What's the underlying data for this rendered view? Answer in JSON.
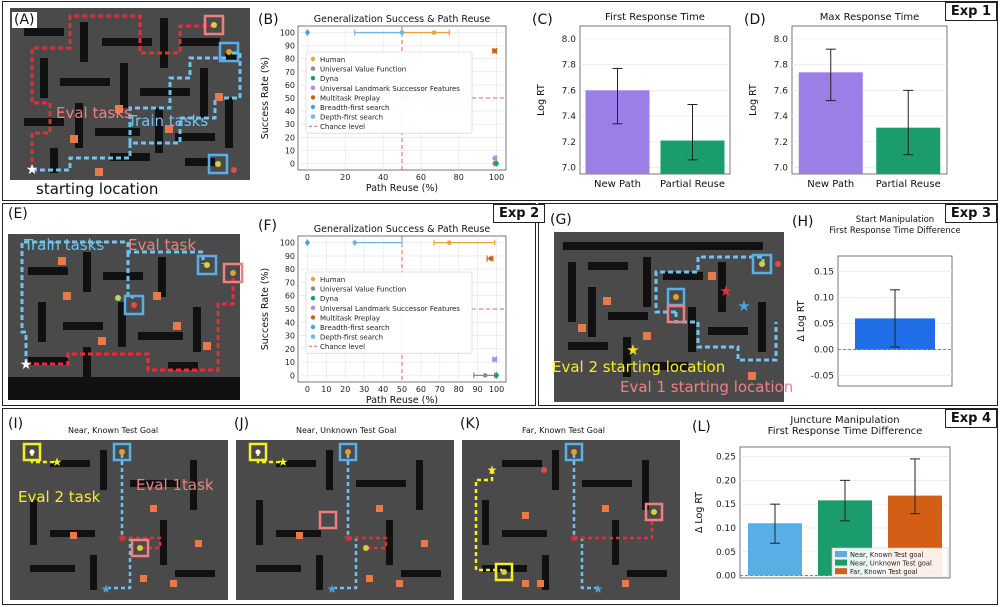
{
  "rows": {
    "exp1": "Exp 1",
    "exp2": "Exp 2",
    "exp3": "Exp 3",
    "exp4": "Exp 4"
  },
  "colors": {
    "bar_purple": "#9c7fe6",
    "bar_green": "#1a9c6c",
    "bar_blue": "#1f6ee8",
    "bar_orange": "#d35f16",
    "bar_lightblue": "#5aaee6",
    "maze_bg": "#4a4a4a",
    "wall": "#111111",
    "path_red": "#e0303c",
    "path_blue": "#6fc4ef"
  },
  "panels": {
    "A": {
      "label": "(A)",
      "eval_text": "Eval tasks",
      "train_text": "Train tasks",
      "start_text": "starting location"
    },
    "E": {
      "label": "(E)",
      "train_text": "Train tasks",
      "eval_text": "Eval task"
    },
    "G": {
      "label": "(G)",
      "eval2_text": "Eval 2 starting location",
      "eval1_text": "Eval 1 starting location"
    },
    "I": {
      "label": "(I)",
      "title": "Near, Known Test Goal",
      "eval2_text": "Eval 2 task",
      "eval1_text": "Eval 1task"
    },
    "J": {
      "label": "(J)",
      "title": "Near, Unknown Test Goal"
    },
    "K": {
      "label": "(K)",
      "title": "Far, Known Test Goal"
    }
  },
  "chart_data": [
    {
      "id": "B",
      "label": "(B)",
      "type": "scatter",
      "title": "Generalization Success & Path Reuse",
      "xlabel": "Path Reuse (%)",
      "ylabel": "Success Rate (%)",
      "xlim": [
        -5,
        105
      ],
      "ylim": [
        -5,
        105
      ],
      "xticks": [
        0,
        20,
        40,
        60,
        80,
        100
      ],
      "yticks": [
        0,
        10,
        20,
        30,
        40,
        50,
        60,
        70,
        80,
        90,
        100
      ],
      "series": [
        {
          "name": "Human",
          "color": "#e8a33a",
          "x": 67,
          "y": 100,
          "xerr": [
            50,
            75
          ],
          "yerr": [
            100,
            100
          ]
        },
        {
          "name": "Universal Value Function",
          "color": "#8a8a8a",
          "x": 99,
          "y": 0,
          "xerr": [
            99,
            99
          ],
          "yerr": [
            0,
            0
          ]
        },
        {
          "name": "Dyna",
          "color": "#1a9c6c",
          "x": 100,
          "y": 0,
          "xerr": [
            100,
            100
          ],
          "yerr": [
            0,
            0
          ]
        },
        {
          "name": "Universal Landmark Successor Features",
          "color": "#b48ae6",
          "x": 99,
          "y": 4,
          "xerr": [
            99,
            100
          ],
          "yerr": [
            3,
            6
          ]
        },
        {
          "name": "Multitask Preplay",
          "color": "#d35f16",
          "x": 99,
          "y": 86,
          "xerr": [
            98,
            100
          ],
          "yerr": [
            84,
            88
          ]
        },
        {
          "name": "Breadth-first search",
          "color": "#4aa3e0",
          "x": 0,
          "y": 100,
          "xerr": [
            0,
            0
          ],
          "yerr": [
            100,
            100
          ]
        },
        {
          "name": "Depth-first search",
          "color": "#6fb4e8",
          "x": 50,
          "y": 100,
          "xerr": [
            25,
            50
          ],
          "yerr": [
            100,
            100
          ]
        }
      ],
      "chance": {
        "name": "Chance level",
        "x": 50,
        "y": 50
      }
    },
    {
      "id": "C",
      "label": "(C)",
      "type": "bar",
      "title": "First Response Time",
      "ylabel": "Log RT",
      "categories": [
        "New Path",
        "Partial Reuse"
      ],
      "values": [
        7.6,
        7.21
      ],
      "err_low": [
        7.34,
        7.06
      ],
      "err_high": [
        7.77,
        7.49
      ],
      "colors": [
        "#9c7fe6",
        "#1a9c6c"
      ],
      "ylim": [
        6.95,
        8.1
      ],
      "yticks": [
        "7.0",
        "7.2",
        "7.4",
        "7.6",
        "7.8",
        "8.0"
      ]
    },
    {
      "id": "D",
      "label": "(D)",
      "type": "bar",
      "title": "Max Response Time",
      "ylabel": "Log RT",
      "categories": [
        "New Path",
        "Partial Reuse"
      ],
      "values": [
        7.74,
        7.31
      ],
      "err_low": [
        7.52,
        7.1
      ],
      "err_high": [
        7.92,
        7.6
      ],
      "colors": [
        "#9c7fe6",
        "#1a9c6c"
      ],
      "ylim": [
        6.95,
        8.1
      ],
      "yticks": [
        "7.0",
        "7.2",
        "7.4",
        "7.6",
        "7.8",
        "8.0"
      ]
    },
    {
      "id": "F",
      "label": "(F)",
      "type": "scatter",
      "title": "Generalization Success & Path Reuse",
      "xlabel": "Path Reuse (%)",
      "ylabel": "Success Rate (%)",
      "xlim": [
        -5,
        105
      ],
      "ylim": [
        -5,
        105
      ],
      "xticks": [
        0,
        10,
        20,
        30,
        40,
        50,
        60,
        70,
        80,
        90,
        100
      ],
      "yticks": [
        0,
        10,
        20,
        30,
        40,
        50,
        60,
        70,
        80,
        90,
        100
      ],
      "series": [
        {
          "name": "Human",
          "color": "#e8a33a",
          "x": 75,
          "y": 100,
          "xerr": [
            67,
            99
          ],
          "yerr": [
            100,
            100
          ]
        },
        {
          "name": "Universal Value Function",
          "color": "#8a8a8a",
          "x": 94,
          "y": 0,
          "xerr": [
            88,
            99
          ],
          "yerr": [
            0,
            0
          ]
        },
        {
          "name": "Dyna",
          "color": "#1a9c6c",
          "x": 100,
          "y": 0,
          "xerr": [
            100,
            100
          ],
          "yerr": [
            0,
            0
          ]
        },
        {
          "name": "Universal Landmark Successor Features",
          "color": "#b48ae6",
          "x": 99,
          "y": 12,
          "xerr": [
            98,
            100
          ],
          "yerr": [
            12,
            12
          ]
        },
        {
          "name": "Multitask Preplay",
          "color": "#d35f16",
          "x": 97,
          "y": 88,
          "xerr": [
            95,
            98
          ],
          "yerr": [
            87,
            89
          ]
        },
        {
          "name": "Breadth-first search",
          "color": "#4aa3e0",
          "x": 0,
          "y": 100,
          "xerr": [
            0,
            0
          ],
          "yerr": [
            100,
            100
          ]
        },
        {
          "name": "Depth-first search",
          "color": "#6fb4e8",
          "x": 25,
          "y": 100,
          "xerr": [
            25,
            50
          ],
          "yerr": [
            100,
            100
          ]
        }
      ],
      "chance": {
        "name": "Chance level",
        "x": 50,
        "y": 50
      }
    },
    {
      "id": "H",
      "label": "(H)",
      "type": "bar",
      "title": "Start Manipulation",
      "subtitle": "First Response Time Difference",
      "ylabel": "Δ Log RT",
      "categories": [
        ""
      ],
      "values": [
        0.06
      ],
      "err_low": [
        0.005
      ],
      "err_high": [
        0.115
      ],
      "colors": [
        "#1f6ee8"
      ],
      "ylim": [
        -0.07,
        0.18
      ],
      "yticks": [
        "-0.05",
        "0.00",
        "0.05",
        "0.10",
        "0.15"
      ]
    },
    {
      "id": "L",
      "label": "(L)",
      "type": "bar",
      "title": "Juncture Manipulation",
      "subtitle": "First Response Time Difference",
      "ylabel": "Δ Log RT",
      "categories": [
        "Near, Known Test goal",
        "Near, Unknown Test goal",
        "Far, Known Test goal"
      ],
      "values": [
        0.11,
        0.158,
        0.168
      ],
      "err_low": [
        0.068,
        0.115,
        0.13
      ],
      "err_high": [
        0.15,
        0.2,
        0.245
      ],
      "colors": [
        "#5aaee6",
        "#1a9c6c",
        "#d35f16"
      ],
      "ylim": [
        -0.005,
        0.27
      ],
      "yticks": [
        "0.00",
        "0.05",
        "0.10",
        "0.15",
        "0.20",
        "0.25"
      ]
    }
  ]
}
